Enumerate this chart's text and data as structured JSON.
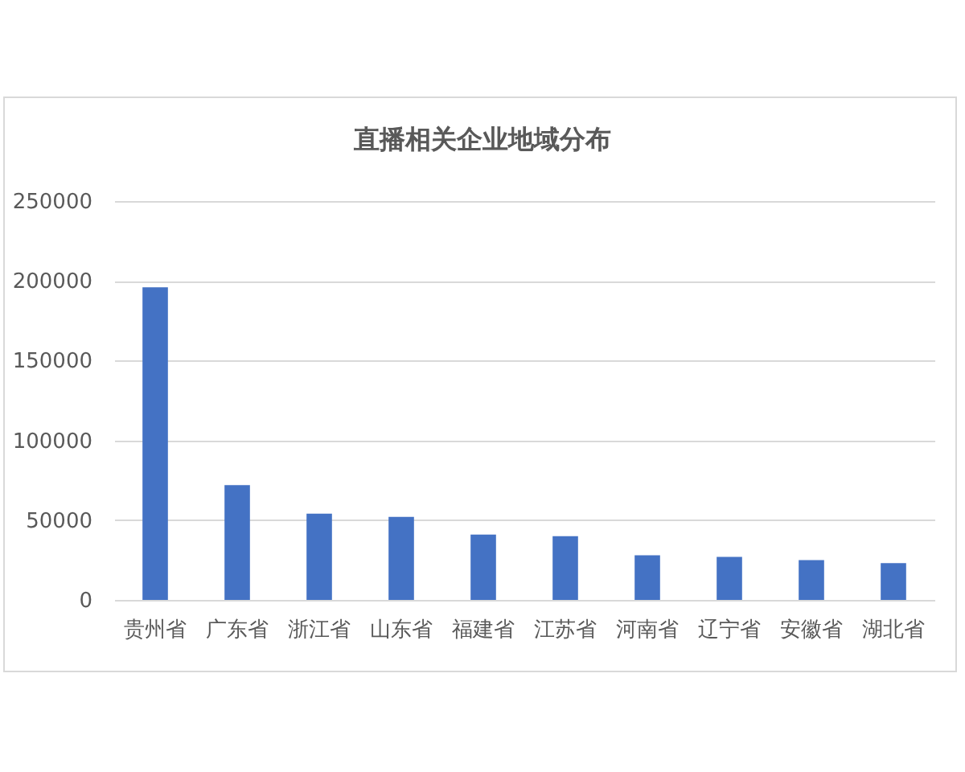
{
  "chart_data": {
    "type": "bar",
    "title": "直播相关企业地域分布",
    "categories": [
      "贵州省",
      "广东省",
      "浙江省",
      "山东省",
      "福建省",
      "江苏省",
      "河南省",
      "辽宁省",
      "安徽省",
      "湖北省"
    ],
    "values": [
      196000,
      72000,
      54000,
      52000,
      41000,
      40000,
      28000,
      27000,
      25000,
      23000
    ],
    "color": "#4472c4",
    "ylim": [
      0,
      250000
    ],
    "yticks": [
      0,
      50000,
      100000,
      150000,
      200000,
      250000
    ],
    "grid": "y"
  }
}
